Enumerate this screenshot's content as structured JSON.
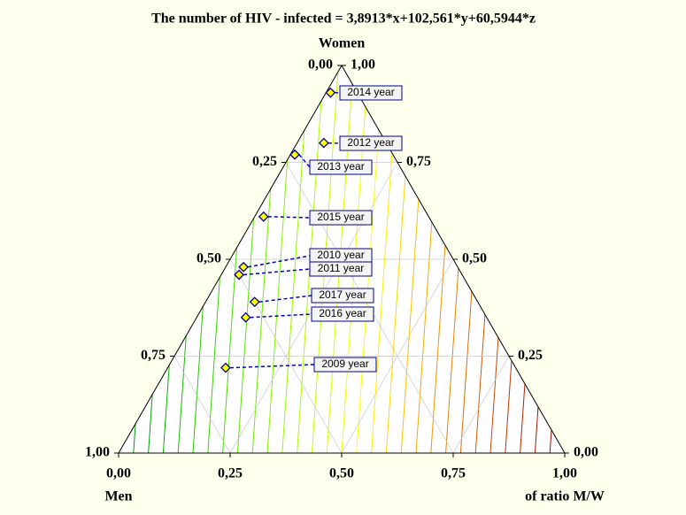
{
  "chart_data": {
    "type": "ternary",
    "title": "The number of HIV - infected  = 3,8913*x+102,561*y+60,5944*z",
    "axes": {
      "women": "Women",
      "men": "Men",
      "ratio": "of ratio M/W"
    },
    "men_ticks": [
      {
        "value": 0,
        "label": "0,00"
      },
      {
        "value": 0.25,
        "label": "0,25"
      },
      {
        "value": 0.5,
        "label": "0,50"
      },
      {
        "value": 0.75,
        "label": "0,75"
      },
      {
        "value": 1,
        "label": "1,00"
      }
    ],
    "women_ticks": [
      {
        "value": 0,
        "label": "0,00"
      },
      {
        "value": 0.25,
        "label": "0,25"
      },
      {
        "value": 0.5,
        "label": "0,50"
      },
      {
        "value": 0.75,
        "label": "0,75"
      },
      {
        "value": 1,
        "label": "1,00"
      }
    ],
    "ratio_ticks": [
      {
        "value": 0,
        "label": "0,00"
      },
      {
        "value": 0.25,
        "label": "0,25"
      },
      {
        "value": 0.5,
        "label": "0,50"
      },
      {
        "value": 0.75,
        "label": "0,75"
      },
      {
        "value": 1,
        "label": "1,00"
      }
    ],
    "points": [
      {
        "label": "2014 year",
        "men": 0.06,
        "women": 0.93,
        "ratio": 0.01
      },
      {
        "label": "2012 year",
        "men": 0.14,
        "women": 0.8,
        "ratio": 0.06
      },
      {
        "label": "2013 year",
        "men": 0.22,
        "women": 0.77,
        "ratio": 0.01
      },
      {
        "label": "2015 year",
        "men": 0.37,
        "women": 0.61,
        "ratio": 0.02
      },
      {
        "label": "2010 year",
        "men": 0.48,
        "women": 0.48,
        "ratio": 0.04
      },
      {
        "label": "2011 year",
        "men": 0.5,
        "women": 0.46,
        "ratio": 0.04
      },
      {
        "label": "2017 year",
        "men": 0.5,
        "women": 0.39,
        "ratio": 0.11
      },
      {
        "label": "2016 year",
        "men": 0.54,
        "women": 0.35,
        "ratio": 0.11
      },
      {
        "label": "2009 year",
        "men": 0.65,
        "women": 0.22,
        "ratio": 0.13
      }
    ],
    "marker_color": "#ffff00",
    "marker_edge": "#00008b",
    "grid": true
  }
}
